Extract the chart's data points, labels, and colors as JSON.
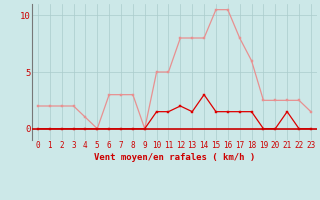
{
  "hours": [
    0,
    1,
    2,
    3,
    4,
    5,
    6,
    7,
    8,
    9,
    10,
    11,
    12,
    13,
    14,
    15,
    16,
    17,
    18,
    19,
    20,
    21,
    22,
    23
  ],
  "rafales": [
    2,
    2,
    2,
    2,
    1,
    0,
    3,
    3,
    3,
    0,
    5,
    5,
    8,
    8,
    8,
    10.5,
    10.5,
    8,
    6,
    2.5,
    2.5,
    2.5,
    2.5,
    1.5
  ],
  "vent_moyen": [
    0,
    0,
    0,
    0,
    0,
    0,
    0,
    0,
    0,
    0,
    1.5,
    1.5,
    2,
    1.5,
    3,
    1.5,
    1.5,
    1.5,
    1.5,
    0,
    0,
    1.5,
    0,
    0
  ],
  "bg_color": "#cce8e8",
  "grid_color": "#aacccc",
  "line_color_rafales": "#e89090",
  "line_color_vent": "#dd0000",
  "ylabel_ticks": [
    0,
    5,
    10
  ],
  "xlabel": "Vent moyen/en rafales ( km/h )",
  "ylim": [
    -1,
    11
  ],
  "xlim": [
    -0.5,
    23.5
  ],
  "tick_fontsize": 5.5,
  "label_fontsize": 6.5
}
